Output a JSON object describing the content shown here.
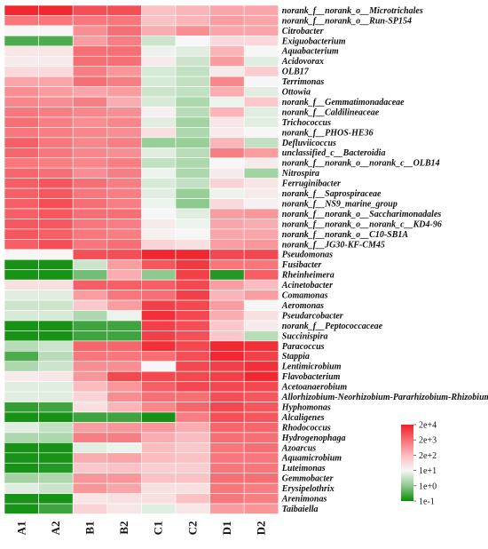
{
  "chart_data": {
    "type": "heatmap",
    "columns": [
      "A1",
      "A2",
      "B1",
      "B2",
      "C1",
      "C2",
      "D1",
      "D2"
    ],
    "rows": [
      "norank_f__norank_o__Microtrichales",
      "norank_f__norank_o__Run-SP154",
      "Citrobacter",
      "Exiguobacterium",
      "Aquabacterium",
      "Acidovorax",
      "OLB17",
      "Terrimonas",
      "Ottowia",
      "norank_f__Gemmatimonadaceae",
      "norank_f__Caldilineaceae",
      "Trichococcus",
      "norank_f__PHOS-HE36",
      "Defluviicoccus",
      "unclassified_c__Bacteroidia",
      "norank_f__norank_o__norank_c__OLB14",
      "Nitrospira",
      "Ferruginibacter",
      "norank_f__Saprospiraceae",
      "norank_f__NS9_marine_group",
      "norank_f__norank_o__Saccharimonadales",
      "norank_f__norank_o__norank_c__KD4-96",
      "norank_f__norank_o__C10-SB1A",
      "norank_f__JG30-KF-CM45",
      "Pseudomonas",
      "Fusibacter",
      "Rheinheimera",
      "Acinetobacter",
      "Comamonas",
      "Aeromonas",
      "Pseudarcobacter",
      "norank_f__Peptococcaceae",
      "Succinispira",
      "Paracoccus",
      "Stappia",
      "Lentimicrobium",
      "Flavobacterium",
      "Acetoanaerobium",
      "Allorhizobium-Neorhizobium-Pararhizobium-Rhizobium",
      "Hyphomonas",
      "Alcaligenes",
      "Rhodococcus",
      "Hydrogenophaga",
      "Azoarcus",
      "Aquamicrobium",
      "Luteimonas",
      "Gemmobacter",
      "Erysipelothrix",
      "Arenimonas",
      "Taibaiella"
    ],
    "values": [
      [
        3.9,
        3.9,
        3.4,
        3.4,
        1.9,
        2.1,
        2.3,
        2.3
      ],
      [
        2.9,
        2.9,
        2.9,
        2.9,
        1.9,
        2.1,
        2.4,
        2.3
      ],
      [
        1.0,
        1.0,
        2.6,
        3.0,
        2.2,
        2.6,
        2.3,
        2.3
      ],
      [
        -0.5,
        -0.5,
        2.4,
        2.8,
        0.6,
        1.0,
        1.5,
        1.5
      ],
      [
        1.3,
        1.3,
        3.0,
        3.0,
        0.9,
        0.8,
        2.1,
        1.0
      ],
      [
        1.2,
        1.2,
        3.0,
        3.0,
        1.2,
        0.6,
        2.4,
        0.8
      ],
      [
        1.5,
        1.5,
        2.8,
        2.5,
        0.7,
        0.5,
        1.2,
        1.7
      ],
      [
        2.3,
        2.3,
        3.0,
        2.8,
        0.7,
        0.5,
        2.7,
        1.0
      ],
      [
        2.6,
        2.4,
        2.3,
        2.4,
        0.6,
        0.5,
        2.2,
        0.8
      ],
      [
        2.7,
        2.6,
        2.8,
        2.2,
        0.7,
        0.3,
        0.9,
        1.8
      ],
      [
        2.9,
        2.8,
        2.7,
        2.6,
        1.1,
        0.4,
        2.1,
        0.8
      ],
      [
        3.0,
        2.8,
        2.6,
        2.7,
        0.8,
        0.2,
        1.3,
        0.8
      ],
      [
        2.9,
        2.8,
        2.7,
        2.6,
        1.4,
        0.3,
        1.2,
        1.0
      ],
      [
        3.2,
        2.9,
        2.7,
        2.8,
        0.1,
        0.1,
        2.1,
        0.5
      ],
      [
        3.1,
        2.9,
        2.7,
        2.6,
        0.8,
        0.4,
        2.8,
        2.4
      ],
      [
        2.9,
        2.8,
        2.7,
        2.8,
        0.5,
        0.3,
        1.0,
        1.2
      ],
      [
        3.1,
        3.0,
        2.6,
        2.8,
        0.9,
        0.3,
        1.2,
        0.2
      ],
      [
        3.2,
        3.3,
        3.0,
        2.8,
        0.7,
        0.5,
        1.6,
        1.3
      ],
      [
        3.2,
        3.3,
        2.9,
        2.8,
        0.8,
        0.1,
        0.9,
        1.2
      ],
      [
        3.2,
        3.4,
        3.0,
        2.8,
        0.9,
        0.0,
        1.5,
        1.1
      ],
      [
        3.2,
        3.3,
        3.0,
        3.0,
        1.0,
        0.8,
        2.4,
        2.5
      ],
      [
        3.3,
        3.3,
        2.9,
        2.8,
        1.2,
        0.9,
        2.3,
        2.2
      ],
      [
        3.3,
        3.2,
        2.9,
        2.8,
        1.1,
        1.0,
        2.3,
        2.3
      ],
      [
        3.2,
        3.4,
        2.9,
        3.0,
        1.6,
        1.4,
        2.4,
        2.5
      ],
      [
        1.0,
        1.0,
        3.4,
        3.4,
        3.9,
        3.9,
        3.5,
        3.5
      ],
      [
        -0.9,
        -0.9,
        0.6,
        2.4,
        3.3,
        3.7,
        2.9,
        2.9
      ],
      [
        -0.9,
        -0.9,
        -0.2,
        2.2,
        0.0,
        3.6,
        -0.8,
        3.2
      ],
      [
        1.4,
        1.4,
        3.2,
        3.2,
        3.2,
        3.5,
        2.4,
        2.0
      ],
      [
        0.8,
        0.8,
        2.4,
        2.9,
        3.0,
        3.6,
        2.1,
        2.4
      ],
      [
        0.6,
        0.6,
        1.8,
        2.4,
        3.6,
        3.5,
        2.4,
        1.0
      ],
      [
        0.7,
        0.7,
        0.3,
        0.9,
        3.8,
        3.5,
        2.2,
        1.4
      ],
      [
        -0.9,
        -0.9,
        -0.6,
        -0.6,
        3.6,
        3.4,
        1.8,
        1.2
      ],
      [
        -0.9,
        -0.9,
        -0.6,
        -0.6,
        3.6,
        3.4,
        1.8,
        0.4
      ],
      [
        0.4,
        0.6,
        3.1,
        3.1,
        3.8,
        3.5,
        3.9,
        3.8
      ],
      [
        -0.5,
        0.4,
        2.9,
        2.9,
        3.0,
        3.4,
        3.9,
        3.6
      ],
      [
        0.3,
        0.6,
        2.6,
        2.6,
        1.0,
        3.5,
        3.6,
        3.8
      ],
      [
        1.2,
        1.3,
        2.5,
        3.5,
        3.5,
        3.5,
        3.6,
        3.9
      ],
      [
        0.8,
        0.8,
        2.0,
        2.5,
        3.2,
        3.5,
        3.5,
        3.5
      ],
      [
        0.8,
        0.8,
        1.6,
        2.6,
        3.0,
        3.0,
        3.4,
        3.3
      ],
      [
        -0.7,
        -0.6,
        1.4,
        2.1,
        2.7,
        3.1,
        3.5,
        3.3
      ],
      [
        -0.9,
        -0.9,
        -0.6,
        -0.6,
        -0.9,
        2.8,
        3.4,
        3.3
      ],
      [
        0.8,
        0.5,
        2.4,
        2.5,
        2.5,
        2.2,
        3.1,
        3.1
      ],
      [
        0.3,
        0.3,
        2.8,
        2.8,
        2.2,
        2.0,
        3.0,
        3.0
      ],
      [
        -0.9,
        -0.9,
        0.8,
        0.9,
        2.0,
        1.8,
        2.9,
        3.0
      ],
      [
        -0.9,
        -0.9,
        2.2,
        2.3,
        2.0,
        1.9,
        2.9,
        2.9
      ],
      [
        -0.9,
        -0.8,
        1.8,
        1.9,
        1.7,
        1.7,
        2.9,
        2.9
      ],
      [
        0.2,
        0.3,
        2.5,
        2.5,
        1.9,
        1.9,
        3.0,
        3.0
      ],
      [
        0.8,
        0.6,
        2.5,
        2.3,
        1.4,
        1.4,
        2.9,
        2.8
      ],
      [
        -0.9,
        -0.9,
        1.3,
        1.4,
        1.4,
        1.9,
        2.9,
        2.8
      ],
      [
        -0.9,
        -0.6,
        1.6,
        1.3,
        0.8,
        1.3,
        2.4,
        2.5
      ]
    ],
    "value_scale": "log10",
    "legend": {
      "tick_labels": [
        "2e+4",
        "2e+3",
        "2e+2",
        "1e+1",
        "1e+0",
        "1e-1"
      ],
      "colors": [
        "#f0202a",
        "#f66f74",
        "#fbbcbf",
        "#f6f6f6",
        "#8ec98e",
        "#0a8c0a"
      ],
      "placement": "right"
    }
  }
}
